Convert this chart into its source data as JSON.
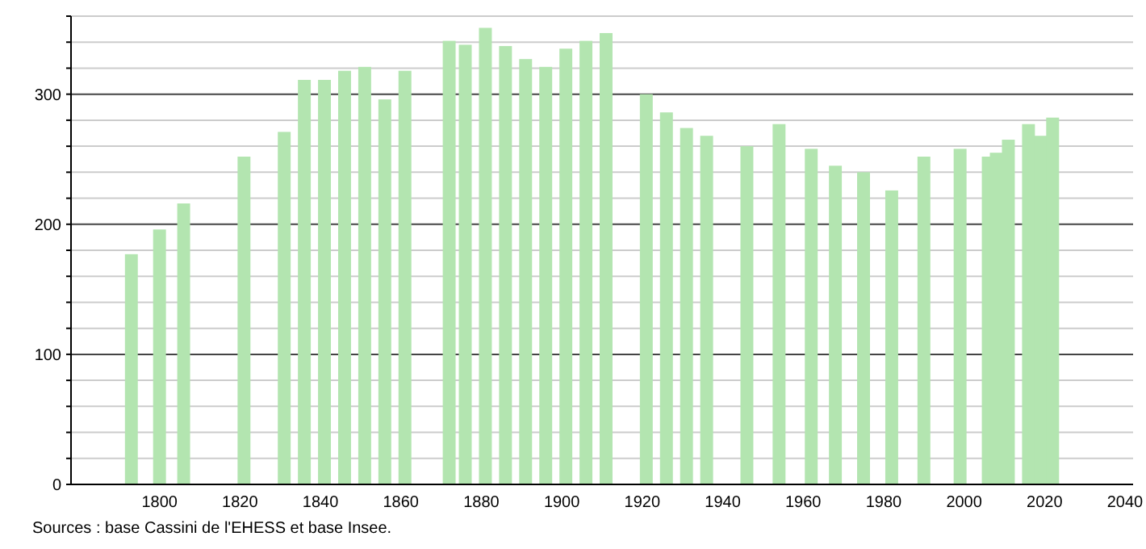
{
  "chart_data": {
    "type": "bar",
    "x": [
      1793,
      1800,
      1806,
      1821,
      1831,
      1836,
      1841,
      1846,
      1851,
      1856,
      1861,
      1872,
      1876,
      1881,
      1886,
      1891,
      1896,
      1901,
      1906,
      1911,
      1921,
      1926,
      1931,
      1936,
      1946,
      1954,
      1962,
      1968,
      1975,
      1982,
      1990,
      1999,
      2006,
      2008,
      2011,
      2016,
      2019,
      2022
    ],
    "values": [
      177,
      196,
      216,
      252,
      271,
      311,
      311,
      318,
      321,
      296,
      318,
      341,
      338,
      351,
      337,
      327,
      321,
      335,
      341,
      347,
      300,
      286,
      274,
      268,
      260,
      277,
      258,
      245,
      240,
      226,
      252,
      258,
      252,
      255,
      265,
      277,
      268,
      282
    ],
    "color": "#b3e5b0",
    "xlim": [
      1778,
      2042
    ],
    "xticks": [
      1800,
      1820,
      1840,
      1860,
      1880,
      1900,
      1920,
      1940,
      1960,
      1980,
      2000,
      2020,
      2040
    ],
    "ylim": [
      0,
      360
    ],
    "yticks": [
      0,
      {
        "value": 20,
        "label": null
      },
      {
        "value": 40,
        "label": null
      },
      {
        "value": 60,
        "label": null
      },
      {
        "value": 80,
        "label": null
      },
      100,
      {
        "value": 120,
        "label": null
      },
      {
        "value": 140,
        "label": null
      },
      {
        "value": 160,
        "label": null
      },
      {
        "value": 180,
        "label": null
      },
      200,
      {
        "value": 220,
        "label": null
      },
      {
        "value": 240,
        "label": null
      },
      {
        "value": 260,
        "label": null
      },
      {
        "value": 280,
        "label": null
      },
      300,
      {
        "value": 320,
        "label": null
      },
      {
        "value": 340,
        "label": null
      },
      {
        "value": 360,
        "label": null
      }
    ],
    "grid": "y",
    "annotations": [
      "Sources : base Cassini de l'EHESS et base Insee."
    ]
  }
}
